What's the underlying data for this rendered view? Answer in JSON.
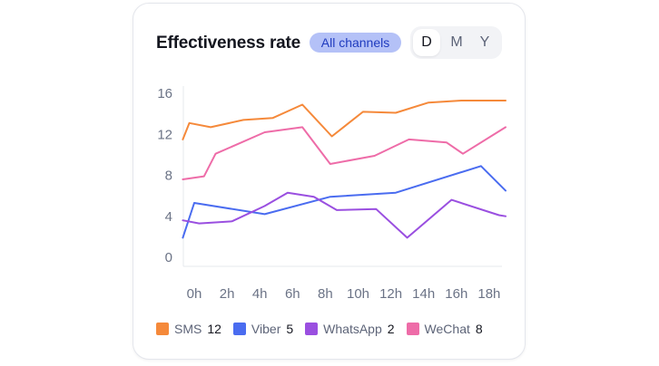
{
  "header": {
    "title": "Effectiveness rate",
    "channel_filter": "All channels",
    "periods": [
      "D",
      "M",
      "Y"
    ],
    "active_period": "D"
  },
  "chart_data": {
    "type": "line",
    "title": "Effectiveness rate",
    "xlabel": "",
    "ylabel": "",
    "ylim": [
      0,
      17
    ],
    "yticks": [
      0,
      4,
      8,
      12,
      16
    ],
    "x_tick_labels": [
      "0h",
      "2h",
      "4h",
      "6h",
      "8h",
      "10h",
      "12h",
      "14h",
      "16h",
      "18h"
    ],
    "xlim": [
      -0.7,
      19
    ],
    "grid": false,
    "legend_position": "bottom",
    "series": [
      {
        "name": "SMS",
        "count": "12",
        "color": "#f5893a",
        "x": [
          -0.7,
          -0.3,
          1.0,
          3.0,
          4.8,
          6.6,
          8.4,
          10.3,
          12.3,
          14.3,
          16.3,
          18.3,
          19.0
        ],
        "y": [
          11.6,
          13.2,
          12.8,
          13.5,
          13.7,
          15.0,
          11.9,
          14.3,
          14.2,
          15.2,
          15.4,
          15.4,
          15.4
        ]
      },
      {
        "name": "Viber",
        "count": "5",
        "color": "#4a6cf0",
        "x": [
          -0.7,
          0.0,
          4.3,
          8.3,
          12.3,
          17.5,
          19.0
        ],
        "y": [
          2.0,
          5.4,
          4.3,
          6.0,
          6.4,
          9.0,
          6.6
        ]
      },
      {
        "name": "WhatsApp",
        "count": "2",
        "color": "#9a4fe0",
        "x": [
          -0.7,
          0.3,
          2.3,
          4.3,
          5.7,
          7.3,
          8.7,
          11.1,
          13.0,
          15.7,
          18.6,
          19.0
        ],
        "y": [
          3.7,
          3.4,
          3.6,
          5.1,
          6.4,
          6.0,
          4.7,
          4.8,
          2.0,
          5.7,
          4.2,
          4.1
        ]
      },
      {
        "name": "WeChat",
        "count": "8",
        "color": "#ee6ca8",
        "x": [
          -0.7,
          0.6,
          1.3,
          4.3,
          6.6,
          8.3,
          11.0,
          13.1,
          15.4,
          16.4,
          19.0
        ],
        "y": [
          7.7,
          8.0,
          10.2,
          12.3,
          12.8,
          9.2,
          10.0,
          11.6,
          11.3,
          10.2,
          12.8
        ]
      }
    ]
  }
}
